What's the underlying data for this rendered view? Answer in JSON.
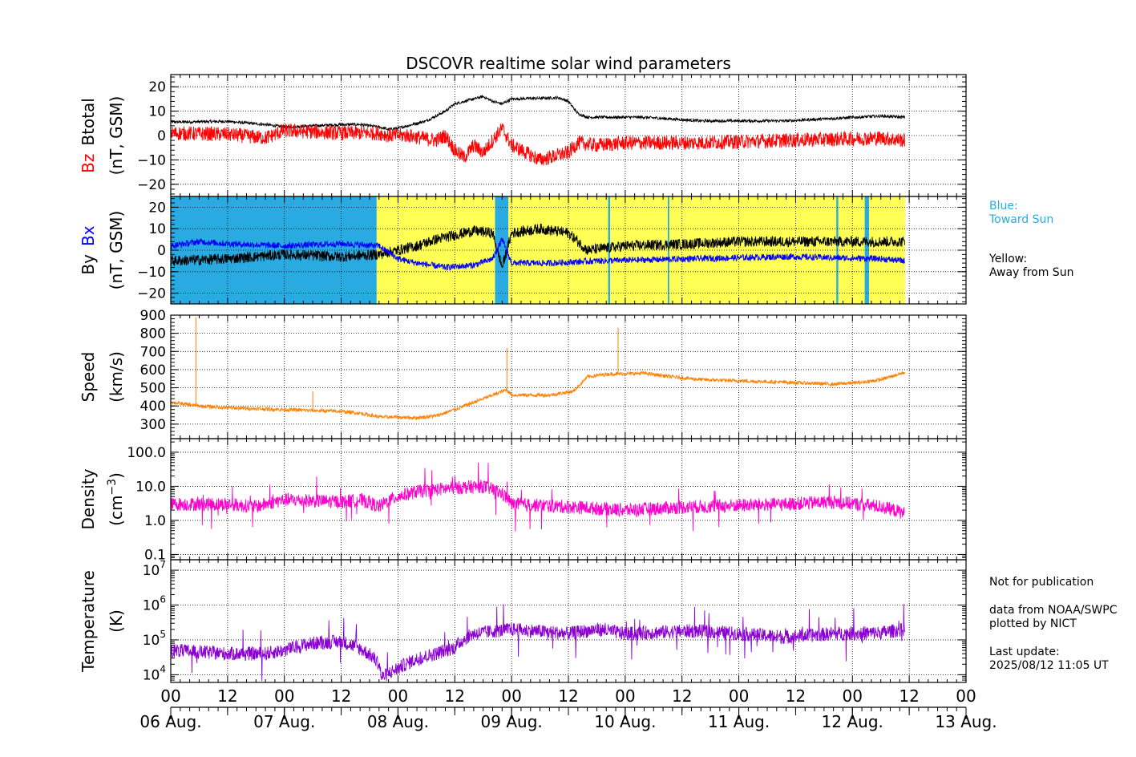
{
  "chart_data": {
    "type": "line",
    "title": "DSCOVR realtime solar wind parameters",
    "x_axis": {
      "hour_ticks": [
        "00",
        "12",
        "00",
        "12",
        "00",
        "12",
        "00",
        "12",
        "00",
        "12",
        "00",
        "12",
        "00",
        "12",
        "00"
      ],
      "date_labels": [
        "06 Aug.",
        "07 Aug.",
        "08 Aug.",
        "09 Aug.",
        "10 Aug.",
        "11 Aug.",
        "12 Aug.",
        "13 Aug."
      ],
      "range_hours": [
        0,
        168
      ],
      "data_end_hour": 155.1
    },
    "panels": [
      {
        "id": "btotal-bz",
        "ylabel_series": [
          {
            "text": "Bz",
            "color": "#ff0000"
          },
          {
            "text": "Btotal",
            "color": "#000000"
          }
        ],
        "ylabel_units": "(nT, GSM)",
        "ylim": [
          -25,
          25
        ],
        "yticks": [
          {
            "v": 20,
            "label": "20"
          },
          {
            "v": 10,
            "label": "10"
          },
          {
            "v": 0,
            "label": "0"
          },
          {
            "v": -10,
            "label": "−10"
          },
          {
            "v": -20,
            "label": "−20"
          }
        ],
        "series": [
          {
            "name": "Btotal",
            "color": "#000000",
            "noise": 0.6,
            "points": [
              [
                0,
                5.5
              ],
              [
                12,
                5.8
              ],
              [
                20,
                4.5
              ],
              [
                24,
                3.5
              ],
              [
                36,
                4.5
              ],
              [
                40,
                4.5
              ],
              [
                44,
                3.5
              ],
              [
                46,
                2.5
              ],
              [
                48,
                3
              ],
              [
                54,
                6
              ],
              [
                58,
                10
              ],
              [
                60,
                13
              ],
              [
                64,
                15
              ],
              [
                66,
                16
              ],
              [
                68,
                14
              ],
              [
                70,
                13
              ],
              [
                72,
                15
              ],
              [
                82,
                15.5
              ],
              [
                84,
                14
              ],
              [
                86,
                9
              ],
              [
                88,
                7.5
              ],
              [
                100,
                7.5
              ],
              [
                112,
                6
              ],
              [
                130,
                6
              ],
              [
                150,
                8
              ],
              [
                155,
                7.5
              ]
            ]
          },
          {
            "name": "Bz",
            "color": "#ff0000",
            "noise": 3,
            "points": [
              [
                0,
                1
              ],
              [
                12,
                0.5
              ],
              [
                20,
                -1
              ],
              [
                24,
                2
              ],
              [
                36,
                1
              ],
              [
                44,
                1
              ],
              [
                46,
                0
              ],
              [
                50,
                0
              ],
              [
                56,
                -2
              ],
              [
                58,
                0
              ],
              [
                60,
                -6
              ],
              [
                62,
                -9
              ],
              [
                64,
                -4
              ],
              [
                66,
                -7
              ],
              [
                68,
                -2
              ],
              [
                70,
                3
              ],
              [
                72,
                -4
              ],
              [
                78,
                -10
              ],
              [
                84,
                -7
              ],
              [
                86,
                -3
              ],
              [
                90,
                -4
              ],
              [
                96,
                -3
              ],
              [
                110,
                -3
              ],
              [
                130,
                -2
              ],
              [
                150,
                -1
              ],
              [
                155,
                -2
              ]
            ]
          }
        ]
      },
      {
        "id": "by-bx",
        "ylabel_series": [
          {
            "text": "By",
            "color": "#000000"
          },
          {
            "text": "Bx",
            "color": "#0000ff"
          }
        ],
        "ylabel_units": "(nT, GSM)",
        "ylim": [
          -25,
          25
        ],
        "yticks": [
          {
            "v": 20,
            "label": "20"
          },
          {
            "v": 10,
            "label": "10"
          },
          {
            "v": 0,
            "label": "0"
          },
          {
            "v": -10,
            "label": "−10"
          },
          {
            "v": -20,
            "label": "−20"
          }
        ],
        "sector_bands": [
          {
            "from": 0,
            "to": 43.5,
            "color": "#29abe2"
          },
          {
            "from": 43.5,
            "to": 68.5,
            "color": "#ffff55"
          },
          {
            "from": 68.5,
            "to": 71.3,
            "color": "#29abe2"
          },
          {
            "from": 71.3,
            "to": 155.1,
            "color": "#ffff55"
          },
          {
            "from": 92.4,
            "to": 92.8,
            "color": "#29abe2"
          },
          {
            "from": 105,
            "to": 105.3,
            "color": "#29abe2"
          },
          {
            "from": 140.6,
            "to": 141,
            "color": "#29abe2"
          },
          {
            "from": 146.6,
            "to": 147.5,
            "color": "#29abe2"
          }
        ],
        "series": [
          {
            "name": "By",
            "color": "#000000",
            "noise": 2.5,
            "points": [
              [
                0,
                -5
              ],
              [
                12,
                -4
              ],
              [
                24,
                -2
              ],
              [
                36,
                -3
              ],
              [
                44,
                -2
              ],
              [
                48,
                0
              ],
              [
                52,
                2
              ],
              [
                56,
                5
              ],
              [
                60,
                7
              ],
              [
                64,
                9
              ],
              [
                68,
                8
              ],
              [
                70,
                -8
              ],
              [
                72,
                8
              ],
              [
                78,
                10
              ],
              [
                84,
                8
              ],
              [
                88,
                0
              ],
              [
                96,
                2
              ],
              [
                110,
                3
              ],
              [
                120,
                4
              ],
              [
                140,
                4
              ],
              [
                150,
                4
              ],
              [
                155,
                4
              ]
            ]
          },
          {
            "name": "Bx",
            "color": "#0000ff",
            "noise": 1.5,
            "points": [
              [
                0,
                2
              ],
              [
                6,
                4
              ],
              [
                12,
                3
              ],
              [
                24,
                2
              ],
              [
                36,
                3
              ],
              [
                44,
                2
              ],
              [
                48,
                -4
              ],
              [
                52,
                -6
              ],
              [
                58,
                -8
              ],
              [
                64,
                -7
              ],
              [
                68,
                -4
              ],
              [
                70,
                5
              ],
              [
                72,
                -6
              ],
              [
                80,
                -6
              ],
              [
                90,
                -5
              ],
              [
                110,
                -4
              ],
              [
                130,
                -3
              ],
              [
                150,
                -4
              ],
              [
                155,
                -5
              ]
            ]
          }
        ]
      },
      {
        "id": "speed",
        "ylabel_series": [
          {
            "text": "Speed",
            "color": "#000000"
          }
        ],
        "ylabel_units": "(km/s)",
        "ylim": [
          220,
          900
        ],
        "yticks": [
          {
            "v": 900,
            "label": "900"
          },
          {
            "v": 800,
            "label": "800"
          },
          {
            "v": 700,
            "label": "700"
          },
          {
            "v": 600,
            "label": "600"
          },
          {
            "v": 500,
            "label": "500"
          },
          {
            "v": 400,
            "label": "400"
          },
          {
            "v": 300,
            "label": "300"
          }
        ],
        "series": [
          {
            "name": "Speed",
            "color": "#ff8000",
            "noise": 10,
            "points": [
              [
                0,
                420
              ],
              [
                6,
                400
              ],
              [
                12,
                390
              ],
              [
                24,
                380
              ],
              [
                36,
                370
              ],
              [
                40,
                360
              ],
              [
                44,
                340
              ],
              [
                52,
                335
              ],
              [
                56,
                345
              ],
              [
                60,
                380
              ],
              [
                64,
                420
              ],
              [
                68,
                460
              ],
              [
                71,
                490
              ],
              [
                72,
                460
              ],
              [
                80,
                460
              ],
              [
                85,
                480
              ],
              [
                88,
                560
              ],
              [
                92,
                575
              ],
              [
                100,
                580
              ],
              [
                106,
                560
              ],
              [
                112,
                545
              ],
              [
                130,
                530
              ],
              [
                140,
                520
              ],
              [
                146,
                530
              ],
              [
                150,
                545
              ],
              [
                155,
                585
              ]
            ]
          }
        ],
        "spikes": [
          [
            5.3,
            890
          ],
          [
            71,
            720
          ],
          [
            94.5,
            830
          ],
          [
            30,
            480
          ]
        ]
      },
      {
        "id": "density",
        "ylabel_series": [
          {
            "text": "Density",
            "color": "#000000"
          }
        ],
        "ylabel_units": "(cm⁻³)",
        "log_scale": true,
        "ylim": [
          0.07,
          250
        ],
        "yticks": [
          {
            "v": 100,
            "label": "100.0"
          },
          {
            "v": 10,
            "label": "10.0"
          },
          {
            "v": 1,
            "label": "1.0"
          },
          {
            "v": 0.1,
            "label": "0.1"
          }
        ],
        "series": [
          {
            "name": "Density",
            "color": "#ff00cc",
            "noise": 0.2,
            "points": [
              [
                0,
                3
              ],
              [
                12,
                3
              ],
              [
                18,
                2.5
              ],
              [
                24,
                4
              ],
              [
                36,
                3.5
              ],
              [
                40,
                4
              ],
              [
                44,
                2.5
              ],
              [
                48,
                5
              ],
              [
                52,
                7
              ],
              [
                60,
                9
              ],
              [
                66,
                10
              ],
              [
                70,
                6
              ],
              [
                72,
                3
              ],
              [
                84,
                2.5
              ],
              [
                96,
                2
              ],
              [
                110,
                2.5
              ],
              [
                130,
                3
              ],
              [
                140,
                3.5
              ],
              [
                150,
                2.5
              ],
              [
                155,
                1.6
              ]
            ]
          }
        ]
      },
      {
        "id": "temperature",
        "ylabel_series": [
          {
            "text": "Temperature",
            "color": "#000000"
          }
        ],
        "ylabel_units": "(K)",
        "log_scale": true,
        "ylim": [
          6000,
          20000000
        ],
        "yticks": [
          {
            "v": 10000000,
            "label": "10^7"
          },
          {
            "v": 1000000,
            "label": "10^6"
          },
          {
            "v": 100000,
            "label": "10^5"
          },
          {
            "v": 10000,
            "label": "10^4"
          }
        ],
        "series": [
          {
            "name": "Temperature",
            "color": "#8a00d4",
            "noise": 0.2,
            "points": [
              [
                0,
                50000
              ],
              [
                12,
                40000
              ],
              [
                20,
                40000
              ],
              [
                24,
                50000
              ],
              [
                30,
                80000
              ],
              [
                36,
                90000
              ],
              [
                44,
                20000
              ],
              [
                44.5,
                8000
              ],
              [
                48,
                15000
              ],
              [
                56,
                40000
              ],
              [
                60,
                60000
              ],
              [
                64,
                150000
              ],
              [
                72,
                200000
              ],
              [
                84,
                150000
              ],
              [
                90,
                200000
              ],
              [
                96,
                150000
              ],
              [
                110,
                180000
              ],
              [
                130,
                120000
              ],
              [
                140,
                150000
              ],
              [
                150,
                160000
              ],
              [
                155,
                200000
              ]
            ]
          }
        ]
      }
    ],
    "notes": {
      "legend_blue": [
        "Blue:",
        "Toward Sun"
      ],
      "legend_yellow": [
        "Yellow:",
        "Away from Sun"
      ],
      "not_for_publication": "Not for publication",
      "source": [
        "data from NOAA/SWPC",
        "plotted by NICT"
      ],
      "last_update": [
        "Last update:",
        "2025/08/12 11:05 UT"
      ]
    },
    "grid": true,
    "colors": {
      "blue_note": "#29abe2"
    }
  }
}
